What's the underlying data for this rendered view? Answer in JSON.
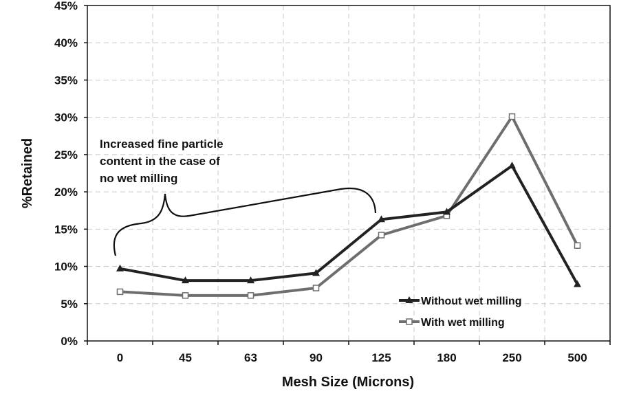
{
  "chart_data": {
    "type": "line",
    "title": "",
    "xlabel": "Mesh Size (Microns)",
    "ylabel": "%Retained",
    "categories": [
      "0",
      "45",
      "63",
      "90",
      "125",
      "180",
      "250",
      "500"
    ],
    "ylim": [
      0,
      45
    ],
    "yticks": [
      "0%",
      "5%",
      "10%",
      "15%",
      "20%",
      "25%",
      "30%",
      "35%",
      "40%",
      "45%"
    ],
    "grid": true,
    "legend_position": "bottom-right",
    "series": [
      {
        "name": "Without wet milling",
        "marker": "triangle",
        "color": "#222222",
        "values": [
          9.7,
          8.1,
          8.1,
          9.1,
          16.3,
          17.3,
          23.5,
          7.6
        ]
      },
      {
        "name": "With wet milling",
        "marker": "square",
        "color": "#6e6e6e",
        "values": [
          6.6,
          6.1,
          6.1,
          7.1,
          14.2,
          16.8,
          30.1,
          12.8
        ]
      }
    ],
    "annotation": {
      "lines": [
        "Increased fine particle",
        "content in the case of",
        "no wet milling"
      ]
    }
  }
}
